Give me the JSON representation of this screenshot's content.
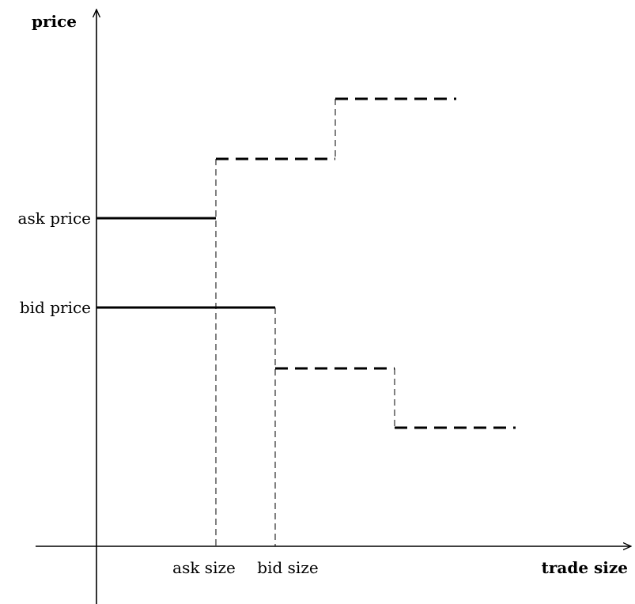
{
  "axes": {
    "y_label": "price",
    "x_label": "trade size"
  },
  "tick_labels": {
    "ask_price": "ask price",
    "bid_price": "bid price",
    "ask_size": "ask size",
    "bid_size": "bid size"
  },
  "chart_data": {
    "type": "line",
    "xlabel": "trade size",
    "ylabel": "price",
    "series": [
      {
        "role": "ask-quote",
        "style": "solid",
        "points": [
          [
            "0",
            "ask price"
          ],
          [
            "ask size",
            "ask price"
          ]
        ]
      },
      {
        "role": "ask-book-depth",
        "style": "dashed-step-up",
        "steps": 2
      },
      {
        "role": "bid-quote",
        "style": "solid",
        "points": [
          [
            "0",
            "bid price"
          ],
          [
            "bid size",
            "bid price"
          ]
        ]
      },
      {
        "role": "bid-book-depth",
        "style": "dashed-step-down",
        "steps": 2
      }
    ],
    "grid": false
  }
}
